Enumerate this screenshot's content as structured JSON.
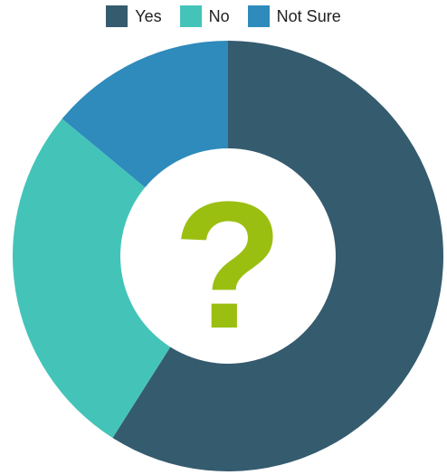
{
  "chart_data": {
    "type": "pie",
    "variant": "donut",
    "categories": [
      "Yes",
      "No",
      "Not Sure"
    ],
    "values": [
      59,
      27,
      14
    ],
    "colors": [
      "#355b6e",
      "#44c4b9",
      "#2e8bbb"
    ],
    "legend_position": "top",
    "center_glyph": "?",
    "center_glyph_color": "#9abf10"
  }
}
